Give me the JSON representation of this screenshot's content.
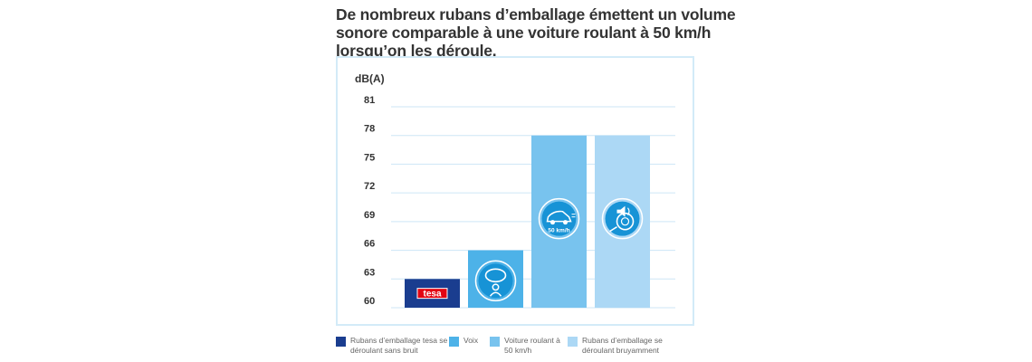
{
  "title_lines": [
    "De nombreux rubans d’emballage émettent un volume",
    "sonore comparable à une voiture roulant à 50 km/h",
    "lorsqu’on les déroule."
  ],
  "chart_data": {
    "type": "bar",
    "ylabel": "dB(A)",
    "ylim": [
      60,
      81
    ],
    "yticks": [
      81,
      78,
      75,
      72,
      69,
      66,
      63,
      60
    ],
    "grid": true,
    "legend_placement": "bottom",
    "categories": [
      "Rubans d’emballage tesa se déroulant sans bruit",
      "Voix",
      "Voiture roulant à 50 km/h",
      "Rubans d’emballage se déroulant bruyamment"
    ],
    "values": [
      63,
      66,
      78,
      78
    ],
    "colors": [
      "#1a3d8f",
      "#4db2e8",
      "#78c3ee",
      "#acd8f5"
    ],
    "icons": [
      "tesa-logo-icon",
      "speech-person-icon",
      "car-icon",
      "tape-noise-icon"
    ],
    "icon_labels": [
      "tesa",
      "",
      "50 km/h",
      ""
    ]
  },
  "legend": [
    {
      "line1": "Rubans d’emballage tesa se",
      "line2": "déroulant sans bruit",
      "color": "#1a3d8f"
    },
    {
      "line1": "Voix",
      "line2": "",
      "color": "#4db2e8"
    },
    {
      "line1": "Voiture roulant à",
      "line2": "50 km/h",
      "color": "#78c3ee"
    },
    {
      "line1": "Rubans d’emballage se",
      "line2": "déroulant bruyamment",
      "color": "#acd8f5"
    }
  ]
}
